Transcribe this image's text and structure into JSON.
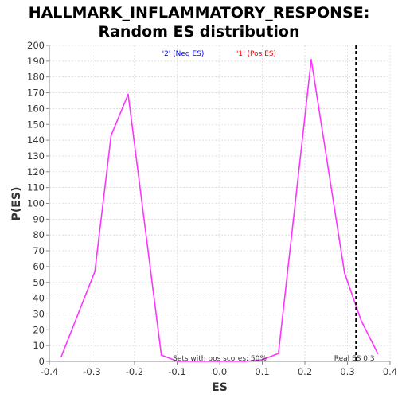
{
  "chart_data": {
    "type": "line",
    "title": "HALLMARK_INFLAMMATORY_RESPONSE:",
    "subtitle": "Random ES distribution",
    "xlabel": "ES",
    "ylabel": "P(ES)",
    "xlim": [
      -0.4,
      0.4
    ],
    "ylim": [
      0,
      200
    ],
    "x_ticks": [
      "-0.4",
      "-0.3",
      "-0.2",
      "-0.1",
      "0.0",
      "0.1",
      "0.2",
      "0.3",
      "0.4"
    ],
    "x_tick_values": [
      -0.4,
      -0.3,
      -0.2,
      -0.1,
      0.0,
      0.1,
      0.2,
      0.3,
      0.4
    ],
    "y_tick_values": [
      0,
      10,
      20,
      30,
      40,
      50,
      60,
      70,
      80,
      90,
      100,
      110,
      120,
      130,
      140,
      150,
      160,
      170,
      180,
      190,
      200
    ],
    "grid": true,
    "legend": [
      {
        "label": "'2' (Neg ES)",
        "color": "#0000ff"
      },
      {
        "label": "'1' (Pos ES)",
        "color": "#ff0000"
      }
    ],
    "legend_position": "top-center",
    "series": [
      {
        "color": "#ff33ff",
        "points": [
          [
            -0.372,
            3
          ],
          [
            -0.293,
            57
          ],
          [
            -0.255,
            143
          ],
          [
            -0.215,
            169
          ],
          [
            -0.137,
            4
          ],
          [
            -0.098,
            0
          ],
          [
            -0.059,
            0
          ],
          [
            0.02,
            0
          ],
          [
            0.06,
            0
          ],
          [
            0.099,
            1
          ],
          [
            0.138,
            5
          ],
          [
            0.215,
            191
          ],
          [
            0.293,
            56
          ],
          [
            0.332,
            26
          ],
          [
            0.371,
            5
          ]
        ]
      }
    ],
    "real_es": {
      "value": 0.32,
      "label": "Real ES 0.3",
      "color": "#000000"
    },
    "annotation": "Sets with pos scores: 50%"
  }
}
